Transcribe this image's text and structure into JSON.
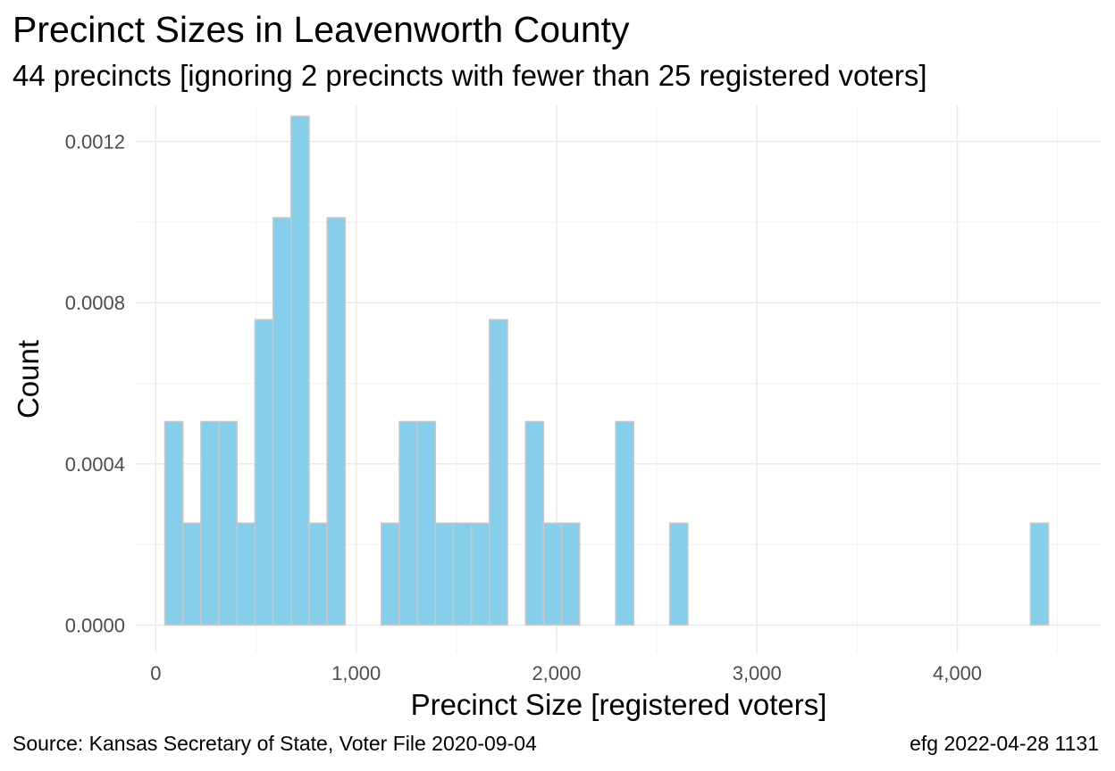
{
  "chart_data": {
    "type": "bar",
    "title": "Precinct Sizes in Leavenworth County",
    "subtitle": "44 precincts [ignoring 2 precincts with fewer than 25 registered voters]",
    "xlabel": "Precinct Size [registered voters]",
    "ylabel": "Count",
    "caption_left": "Source:  Kansas Secretary of State, Voter File  2020-09-04",
    "caption_right": "efg 2022-04-28 1131",
    "xlim": [
      -100,
      4720
    ],
    "ylim": [
      -7e-05,
      0.00129
    ],
    "x_ticks": [
      0,
      1000,
      2000,
      3000,
      4000
    ],
    "x_tick_labels": [
      "0",
      "1,000",
      "2,000",
      "3,000",
      "4,000"
    ],
    "y_ticks": [
      0.0,
      0.0004,
      0.0008,
      0.0012
    ],
    "y_tick_labels": [
      "0.0000",
      "0.0004",
      "0.0008",
      "0.0012"
    ],
    "bin_width": 90,
    "bins_start": 45,
    "values": [
      0.000505,
      0.000253,
      0.000505,
      0.000505,
      0.000253,
      0.000758,
      0.001011,
      0.001263,
      0.000253,
      0.001011,
      0,
      0,
      0.000253,
      0.000505,
      0.000505,
      0.000253,
      0.000253,
      0.000253,
      0.000758,
      0,
      0.000505,
      0.000253,
      0.000253,
      0,
      0,
      0.000505,
      0,
      0,
      0.000253,
      0,
      0,
      0,
      0,
      0,
      0,
      0,
      0,
      0,
      0,
      0,
      0,
      0,
      0,
      0,
      0,
      0,
      0,
      0,
      0.000253
    ],
    "bar_fill": "#87ceeb",
    "bar_stroke": "#c8c8c8",
    "grid": true
  }
}
